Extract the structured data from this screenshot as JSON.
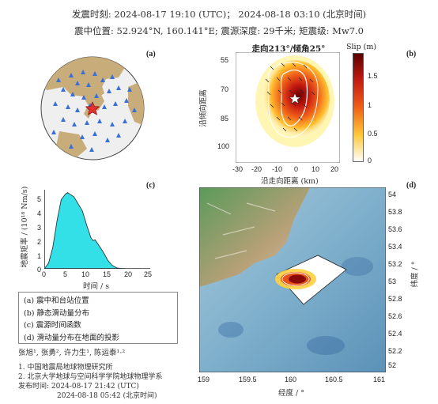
{
  "header": {
    "origin_time": "发震时刻: 2024-08-17 19:10 (UTC)；  2024-08-18  03:10 (北京时间)",
    "location": "震中位置: 52.924°N, 160.141°E;  震源深度: 29千米; 矩震级: Mw7.0"
  },
  "panels": {
    "a": "(a)",
    "b": "(b)",
    "c": "(c)",
    "d": "(d)"
  },
  "panel_b": {
    "title_prefix": "走向",
    "strike": "213°",
    "title_mid": "/倾角",
    "dip": "25°",
    "colorbar_label": "Slip (m)",
    "colorbar_ticks": [
      "1.5",
      "1",
      "0.5",
      "0"
    ],
    "y_ticks": [
      "55",
      "70",
      "85",
      "100"
    ],
    "x_ticks": [
      "-30",
      "-20",
      "-10",
      "0",
      "10",
      "20"
    ],
    "xlabel": "沿走向距离 (km)",
    "ylabel": "沿倾向距离"
  },
  "panel_c": {
    "ylabel": "地震矩率 / (10¹⁸ Nm/s)",
    "xlabel": "时间 / s",
    "y_ticks": [
      "5",
      "4",
      "3",
      "2",
      "1",
      "0"
    ],
    "x_ticks": [
      "0",
      "5",
      "10",
      "15",
      "20",
      "25"
    ]
  },
  "panel_d": {
    "lat_ticks": [
      "54",
      "53.8",
      "53.6",
      "53.4",
      "53.2",
      "53",
      "52.8",
      "52.6",
      "52.4",
      "52.2",
      "52"
    ],
    "lon_ticks": [
      "159",
      "159.5",
      "160",
      "160.5",
      "161"
    ],
    "xlabel": "经度 / °",
    "ylabel": "纬度 / °"
  },
  "legend": [
    "(a) 震中和台站位置",
    "(b) 静态滑动量分布",
    "(c) 震源时间函数",
    "(d) 滑动量分布在地面的投影"
  ],
  "credits": {
    "authors": "张旭¹, 张勇², 许力生¹, 陈运泰¹·²",
    "aff1": "1. 中国地震局地球物理研究所",
    "aff2": "2. 北京大学地球与空间科学学院地球物理学系",
    "published": "发布时间:  2024-08-17  21:42 (UTC)",
    "published_bj": "2024-08-18  05:42 (北京时间)"
  },
  "chart_data": [
    {
      "type": "area",
      "panel": "c",
      "xlabel": "时间 / s",
      "ylabel": "地震矩率 / (10¹⁸ Nm/s)",
      "xlim": [
        0,
        25
      ],
      "ylim": [
        0,
        5.6
      ],
      "x": [
        0,
        1,
        2,
        3,
        4,
        5,
        5.5,
        6,
        7,
        8,
        9,
        10,
        11,
        11.5,
        12,
        13,
        14,
        15,
        16,
        17,
        18,
        19
      ],
      "values": [
        0,
        0.4,
        1.5,
        3.4,
        4.9,
        5.3,
        5.4,
        5.3,
        5.1,
        4.6,
        4.1,
        3.1,
        2.2,
        2.0,
        2.05,
        1.6,
        1.15,
        0.6,
        0.25,
        0.08,
        0.02,
        0
      ]
    },
    {
      "type": "heatmap",
      "panel": "b",
      "xlabel": "沿走向距离 (km)",
      "xlim": [
        -30,
        25
      ],
      "ylim": [
        110,
        50
      ],
      "clim": [
        0,
        1.8
      ],
      "peak_slip": 1.8
    }
  ],
  "colors": {
    "stf_fill": "#33e0e8",
    "station": "#3a6fd6",
    "epicenter": "#e03030",
    "land": "#c8ac7a",
    "ocean": "#eeeeee"
  }
}
